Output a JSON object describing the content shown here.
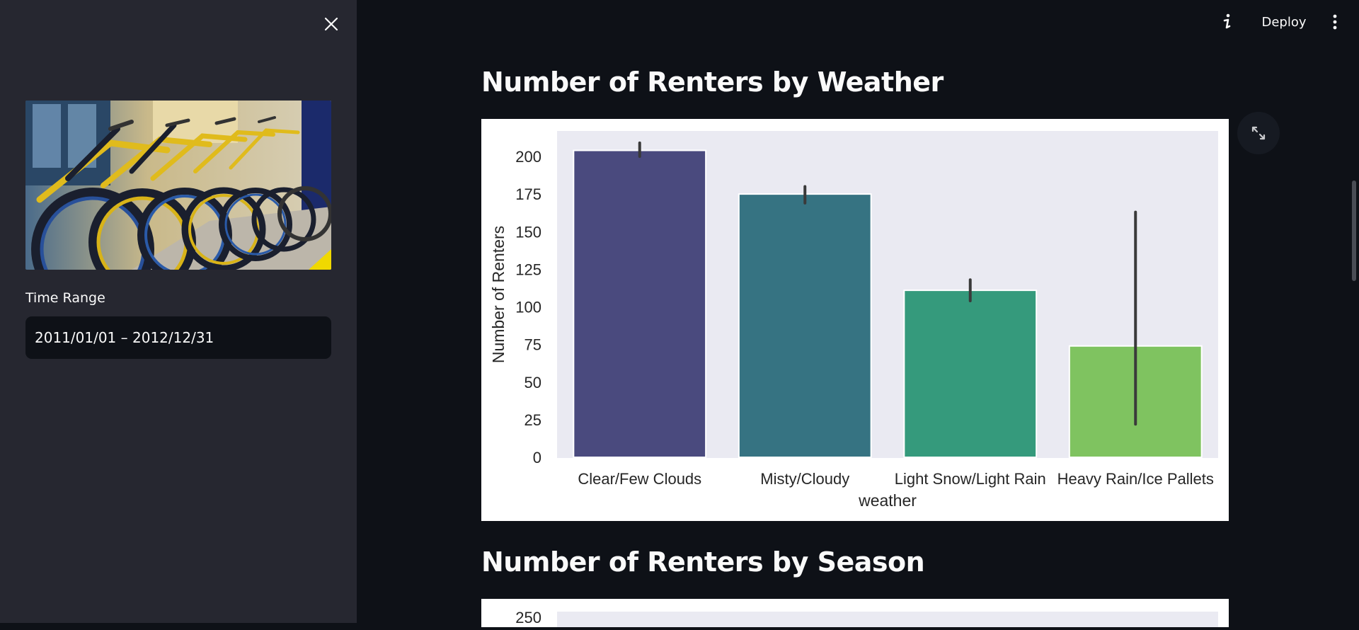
{
  "sidebar": {
    "time_label": "Time Range",
    "date_value": "2011/01/01 – 2012/12/31"
  },
  "header": {
    "deploy_label": "Deploy"
  },
  "main": {
    "heading_weather": "Number of Renters by Weather",
    "heading_season": "Number of Renters by Season"
  },
  "colors": {
    "sidebar_bg": "#262730",
    "main_bg": "#0e1117",
    "plot_bg": "#eaeaf2"
  },
  "icons": [
    "close-icon",
    "info-icon",
    "more-vert-icon",
    "fullscreen-icon"
  ],
  "chart_data": [
    {
      "type": "bar",
      "categories": [
        "Clear/Few Clouds",
        "Misty/Cloudy",
        "Light Snow/Light Rain",
        "Heavy Rain/Ice Pallets"
      ],
      "values": [
        204,
        175,
        111,
        74
      ],
      "error_low": [
        200,
        169,
        104,
        22
      ],
      "error_high": [
        209,
        180,
        118,
        163
      ],
      "colors": [
        "#4a4a7e",
        "#367382",
        "#359a7c",
        "#7fc360"
      ],
      "xlabel": "weather",
      "ylabel": "Number of Renters",
      "yticks": [
        0,
        25,
        50,
        75,
        100,
        125,
        150,
        175,
        200
      ],
      "ylim": [
        0,
        215
      ],
      "grid": false
    },
    {
      "type": "bar",
      "yticks": [
        250
      ]
    }
  ]
}
